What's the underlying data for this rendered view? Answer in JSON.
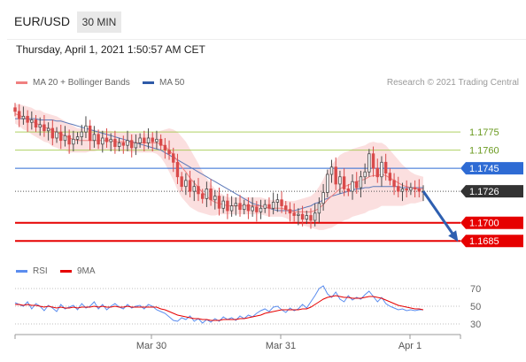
{
  "header": {
    "symbol": "EUR/USD",
    "timeframe": "30 MIN",
    "datetime": "Thursday, April 1, 2021 1:50:57 AM CET"
  },
  "legend": {
    "ma20_label": "MA 20 + Bollinger Bands",
    "ma50_label": "MA 50",
    "rsi_label": "RSI",
    "ma9_label": "9MA"
  },
  "credit": "Research © 2021 Trading Central",
  "colors": {
    "bull": "#4a4a4a",
    "bear": "#d94a4a",
    "bollinger_fill": "#fad4d4",
    "ma20": "#f08080",
    "ma50": "#5b78b8",
    "resistance": "#9bc53d",
    "pivot": "#2e6bd4",
    "support": "#e60000",
    "current": "#333333",
    "rsi": "#5b8def",
    "rsi_ma": "#e60000"
  },
  "chart_data": [
    {
      "type": "candlestick",
      "ylim": [
        1.1672,
        1.1808
      ],
      "x_ticks": [
        "Mar 30",
        "Mar 31",
        "Apr 1"
      ],
      "levels": [
        {
          "value": 1.1775,
          "label": "1.1775",
          "kind": "resistance"
        },
        {
          "value": 1.176,
          "label": "1.1760",
          "kind": "resistance"
        },
        {
          "value": 1.1745,
          "label": "1.1745",
          "kind": "pivot"
        },
        {
          "value": 1.1726,
          "label": "1.1726",
          "kind": "current"
        },
        {
          "value": 1.17,
          "label": "1.1700",
          "kind": "support"
        },
        {
          "value": 1.1685,
          "label": "1.1685",
          "kind": "support"
        }
      ],
      "close": [
        1.1792,
        1.1786,
        1.1788,
        1.1783,
        1.1785,
        1.1779,
        1.1781,
        1.1776,
        1.1778,
        1.177,
        1.1775,
        1.1768,
        1.1772,
        1.1765,
        1.1769,
        1.1771,
        1.1775,
        1.178,
        1.1768,
        1.1773,
        1.1765,
        1.177,
        1.1767,
        1.1769,
        1.1763,
        1.1766,
        1.1764,
        1.1768,
        1.1762,
        1.1766,
        1.177,
        1.1766,
        1.177,
        1.1767,
        1.1769,
        1.1764,
        1.176,
        1.1757,
        1.175,
        1.1738,
        1.173,
        1.1735,
        1.1726,
        1.173,
        1.1724,
        1.172,
        1.1728,
        1.1719,
        1.1722,
        1.1712,
        1.1718,
        1.171,
        1.1714,
        1.1716,
        1.1711,
        1.1715,
        1.171,
        1.1713,
        1.1709,
        1.1712,
        1.1715,
        1.1712,
        1.1717,
        1.1719,
        1.1714,
        1.1711,
        1.1708,
        1.1706,
        1.1707,
        1.1703,
        1.1706,
        1.1702,
        1.1708,
        1.1716,
        1.1725,
        1.174,
        1.1746,
        1.1732,
        1.1738,
        1.1728,
        1.1726,
        1.1734,
        1.1729,
        1.1738,
        1.1742,
        1.1757,
        1.1745,
        1.1738,
        1.175,
        1.1741,
        1.1735,
        1.173,
        1.1726,
        1.1728,
        1.1727,
        1.1729,
        1.1728,
        1.1726,
        1.1726
      ],
      "ma20": [
        1.179,
        1.1789,
        1.1787,
        1.1786,
        1.1784,
        1.1782,
        1.1781,
        1.1779,
        1.1778,
        1.1776,
        1.1775,
        1.1773,
        1.1772,
        1.177,
        1.1769,
        1.1768,
        1.1768,
        1.1768,
        1.1768,
        1.1768,
        1.1768,
        1.1768,
        1.1768,
        1.1768,
        1.1767,
        1.1767,
        1.1767,
        1.1767,
        1.1766,
        1.1766,
        1.1766,
        1.1766,
        1.1766,
        1.1766,
        1.1766,
        1.1765,
        1.1763,
        1.176,
        1.1756,
        1.1751,
        1.1746,
        1.1742,
        1.1737,
        1.1733,
        1.1729,
        1.1725,
        1.1722,
        1.1719,
        1.1717,
        1.1716,
        1.1715,
        1.1714,
        1.1714,
        1.1714,
        1.1714,
        1.1714,
        1.1714,
        1.1714,
        1.1714,
        1.1714,
        1.1713,
        1.1712,
        1.1712,
        1.1712,
        1.1712,
        1.1711,
        1.171,
        1.1709,
        1.1709,
        1.1709,
        1.1709,
        1.1709,
        1.171,
        1.1712,
        1.1715,
        1.1719,
        1.1722,
        1.1725,
        1.1728,
        1.173,
        1.1731,
        1.1733,
        1.1734,
        1.1735,
        1.1736,
        1.1738,
        1.1739,
        1.1739,
        1.174,
        1.1739,
        1.1737,
        1.1735,
        1.1733,
        1.1731,
        1.173,
        1.1729,
        1.1728,
        1.1728,
        1.1728
      ],
      "ma50": [
        1.1786,
        1.1786,
        1.1786,
        1.1786,
        1.1786,
        1.1786,
        1.1785,
        1.1785,
        1.1785,
        1.1785,
        1.1784,
        1.1784,
        1.1783,
        1.1782,
        1.1781,
        1.178,
        1.1779,
        1.1778,
        1.1777,
        1.1776,
        1.1775,
        1.1774,
        1.1773,
        1.1772,
        1.1771,
        1.177,
        1.1769,
        1.1768,
        1.1767,
        1.1766,
        1.1765,
        1.1764,
        1.1763,
        1.1762,
        1.1761,
        1.176,
        1.1758,
        1.1756,
        1.1754,
        1.1752,
        1.175,
        1.1748,
        1.1746,
        1.1744,
        1.1742,
        1.174,
        1.1738,
        1.1736,
        1.1734,
        1.1732,
        1.173,
        1.1728,
        1.1726,
        1.1724,
        1.1722,
        1.172,
        1.1718,
        1.1716,
        1.1715,
        1.1714,
        1.1713,
        1.1712,
        1.1711,
        1.171,
        1.171,
        1.171,
        1.171,
        1.171,
        1.1711,
        1.1712,
        1.1713,
        1.1714,
        1.1716,
        1.1717,
        1.1719,
        1.172,
        1.1722,
        1.1723,
        1.1724,
        1.1725,
        1.1726,
        1.1727,
        1.1728,
        1.1728,
        1.1729,
        1.1729,
        1.173,
        1.173,
        1.173,
        1.173,
        1.173,
        1.173,
        1.173,
        1.1729,
        1.1729,
        1.1729,
        1.1729,
        1.1729,
        1.1729
      ],
      "bollinger_width": [
        0.0008,
        0.0009,
        0.001,
        0.001,
        0.0011,
        0.0011,
        0.0012,
        0.0012,
        0.0012,
        0.0013,
        0.0013,
        0.0013,
        0.0012,
        0.0012,
        0.0011,
        0.001,
        0.001,
        0.001,
        0.0009,
        0.0009,
        0.0008,
        0.0008,
        0.0008,
        0.0008,
        0.0008,
        0.0008,
        0.0008,
        0.0008,
        0.0008,
        0.0008,
        0.0008,
        0.0008,
        0.0008,
        0.0008,
        0.0009,
        0.0011,
        0.0014,
        0.0018,
        0.0021,
        0.0024,
        0.0025,
        0.0025,
        0.0024,
        0.0022,
        0.002,
        0.0017,
        0.0015,
        0.0013,
        0.0011,
        0.0009,
        0.0008,
        0.0007,
        0.0007,
        0.0007,
        0.0007,
        0.0007,
        0.0007,
        0.0007,
        0.0007,
        0.0007,
        0.0007,
        0.0007,
        0.0007,
        0.0007,
        0.0007,
        0.0007,
        0.0008,
        0.0009,
        0.001,
        0.0011,
        0.0012,
        0.0013,
        0.0015,
        0.0018,
        0.0021,
        0.0024,
        0.0026,
        0.0027,
        0.0028,
        0.0028,
        0.0028,
        0.0028,
        0.0028,
        0.0028,
        0.0028,
        0.0028,
        0.0028,
        0.0027,
        0.0026,
        0.0025,
        0.0023,
        0.0021,
        0.0019,
        0.0017,
        0.0015,
        0.0013,
        0.0012,
        0.0011,
        0.001
      ],
      "projection": {
        "from_value": 1.1726,
        "to_value": 1.1685
      }
    },
    {
      "type": "line",
      "name": "RSI panel",
      "ylim": [
        22,
        78
      ],
      "y_ticks": [
        70,
        50,
        30
      ],
      "rsi": [
        54,
        52,
        50,
        55,
        47,
        53,
        50,
        45,
        51,
        48,
        44,
        52,
        47,
        49,
        51,
        46,
        53,
        48,
        50,
        55,
        47,
        52,
        46,
        50,
        53,
        49,
        47,
        52,
        48,
        50,
        51,
        47,
        52,
        50,
        46,
        44,
        42,
        38,
        34,
        33,
        37,
        35,
        39,
        33,
        36,
        31,
        35,
        32,
        36,
        33,
        38,
        35,
        37,
        34,
        39,
        36,
        40,
        38,
        42,
        45,
        47,
        44,
        49,
        50,
        46,
        43,
        48,
        45,
        47,
        52,
        48,
        55,
        62,
        70,
        73,
        64,
        60,
        66,
        58,
        55,
        62,
        57,
        60,
        58,
        63,
        67,
        61,
        55,
        60,
        53,
        50,
        48,
        46,
        47,
        45,
        46,
        45,
        46,
        46
      ],
      "rsi_ma": [
        52,
        52,
        51,
        52,
        51,
        51,
        50,
        49,
        50,
        49,
        48,
        49,
        48,
        48,
        49,
        48,
        49,
        49,
        49,
        50,
        49,
        50,
        49,
        49,
        50,
        49,
        49,
        50,
        49,
        49,
        49,
        49,
        49,
        49,
        49,
        47,
        46,
        44,
        42,
        40,
        39,
        38,
        37,
        36,
        36,
        35,
        35,
        34,
        34,
        34,
        35,
        35,
        35,
        35,
        36,
        36,
        37,
        38,
        39,
        40,
        42,
        43,
        44,
        45,
        46,
        46,
        46,
        46,
        46,
        47,
        47,
        49,
        52,
        55,
        58,
        60,
        61,
        62,
        61,
        60,
        60,
        59,
        59,
        59,
        60,
        61,
        61,
        60,
        59,
        57,
        55,
        53,
        51,
        50,
        49,
        48,
        47,
        47,
        46
      ]
    }
  ]
}
